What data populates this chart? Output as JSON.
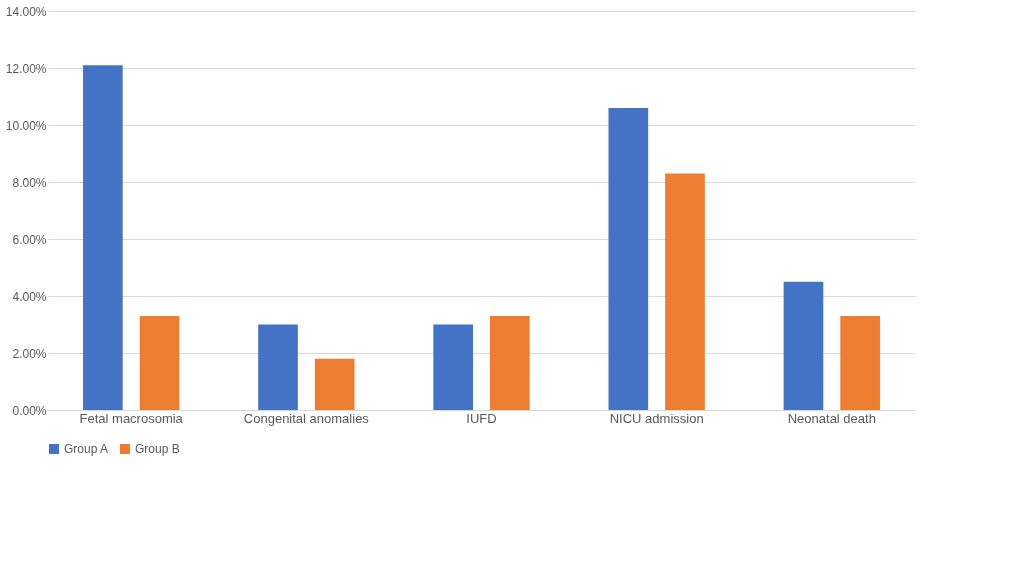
{
  "chart_data": {
    "type": "bar",
    "categories": [
      "Fetal macrosomia",
      "Congenital anomalies",
      "IUFD",
      "NICU admission",
      "Neonatal death"
    ],
    "series": [
      {
        "name": "Group A",
        "color": "#4472c4",
        "values": [
          12.1,
          3.0,
          3.0,
          10.6,
          4.5
        ]
      },
      {
        "name": "Group B",
        "color": "#ed7d31",
        "values": [
          3.3,
          1.8,
          3.3,
          8.3,
          3.3
        ]
      }
    ],
    "ylim": [
      0,
      14
    ],
    "yticks": [
      {
        "value": 0,
        "label": "0.00%"
      },
      {
        "value": 2,
        "label": "2.00%"
      },
      {
        "value": 4,
        "label": "4.00%"
      },
      {
        "value": 6,
        "label": "6.00%"
      },
      {
        "value": 8,
        "label": "8.00%"
      },
      {
        "value": 10,
        "label": "10.00%"
      },
      {
        "value": 12,
        "label": "12.00%"
      },
      {
        "value": 14,
        "label": "14.00%"
      }
    ],
    "grid": "y",
    "legend": "bottom"
  }
}
